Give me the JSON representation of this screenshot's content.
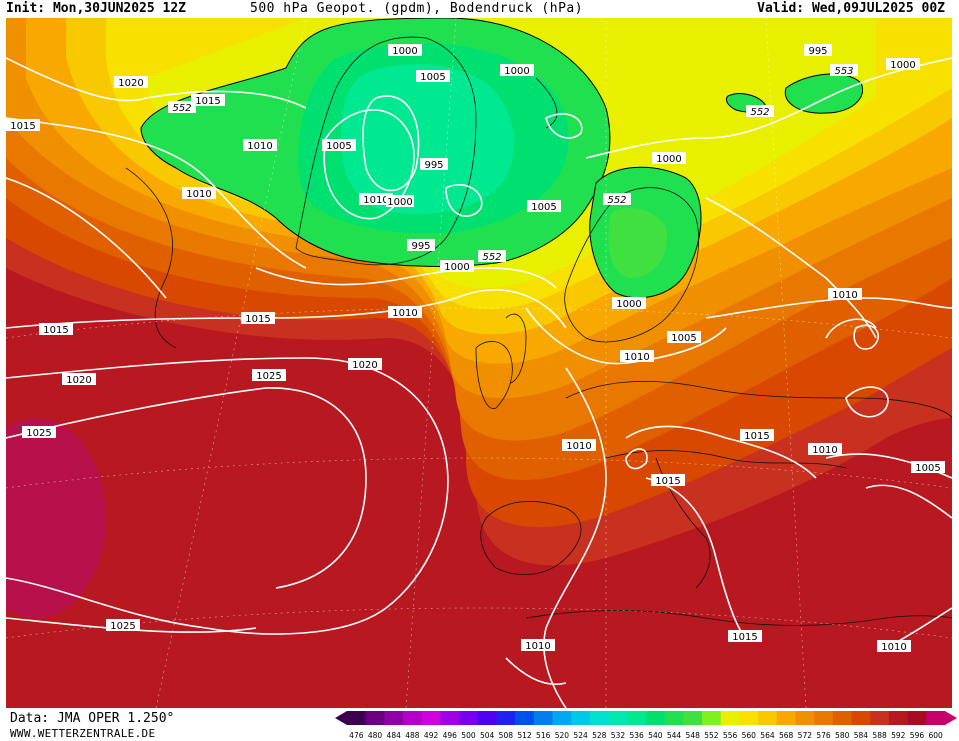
{
  "header": {
    "init": "Init: Mon,30JUN2025 12Z",
    "title": "500 hPa Geopot. (gpdm), Bodendruck (hPa)",
    "valid": "Valid: Wed,09JUL2025 00Z"
  },
  "footer": {
    "data_source": "Data: JMA OPER 1.250°",
    "url": "WWW.WETTERZENTRALE.DE"
  },
  "legend": {
    "values": [
      "476",
      "480",
      "484",
      "488",
      "492",
      "496",
      "500",
      "504",
      "508",
      "512",
      "516",
      "520",
      "524",
      "528",
      "532",
      "536",
      "540",
      "544",
      "548",
      "552",
      "556",
      "560",
      "564",
      "568",
      "572",
      "576",
      "580",
      "584",
      "588",
      "592",
      "596",
      "600"
    ],
    "colors": [
      "#3c0050",
      "#6a0080",
      "#9000a8",
      "#b400c8",
      "#d000e0",
      "#a000e8",
      "#7800f0",
      "#5000f0",
      "#2020f0",
      "#0050f0",
      "#0080f0",
      "#00a8f0",
      "#00c8e8",
      "#00e0d0",
      "#00e8b0",
      "#00e890",
      "#00e070",
      "#20e050",
      "#40e040",
      "#80f020",
      "#e8f000",
      "#f8e000",
      "#f8c800",
      "#f8a800",
      "#f09000",
      "#e87800",
      "#e06000",
      "#d84800",
      "#c83020",
      "#b81820",
      "#a80c20",
      "#c8006a"
    ]
  },
  "map": {
    "heights": {
      "h552": "552"
    },
    "isobar_labels": [
      {
        "text": "1000"
      },
      {
        "text": "1005"
      },
      {
        "text": "1000"
      },
      {
        "text": "1020"
      },
      {
        "text": "552"
      },
      {
        "text": "1015"
      },
      {
        "text": "1015"
      },
      {
        "text": "1010"
      },
      {
        "text": "1005"
      },
      {
        "text": "995"
      },
      {
        "text": "1010"
      },
      {
        "text": "1010"
      },
      {
        "text": "1000"
      },
      {
        "text": "995"
      },
      {
        "text": "1000"
      },
      {
        "text": "552"
      },
      {
        "text": "1005"
      },
      {
        "text": "552"
      },
      {
        "text": "1000"
      },
      {
        "text": "1015"
      },
      {
        "text": "1015"
      },
      {
        "text": "1010"
      },
      {
        "text": "1020"
      },
      {
        "text": "1025"
      },
      {
        "text": "1020"
      },
      {
        "text": "1025"
      },
      {
        "text": "1000"
      },
      {
        "text": "1005"
      },
      {
        "text": "1010"
      },
      {
        "text": "1010"
      },
      {
        "text": "995"
      },
      {
        "text": "553"
      },
      {
        "text": "1000"
      },
      {
        "text": "552"
      },
      {
        "text": "1010"
      },
      {
        "text": "1015"
      },
      {
        "text": "1010"
      },
      {
        "text": "1015"
      },
      {
        "text": "1005"
      },
      {
        "text": "1025"
      },
      {
        "text": "1010"
      },
      {
        "text": "1015"
      },
      {
        "text": "1010"
      }
    ]
  }
}
